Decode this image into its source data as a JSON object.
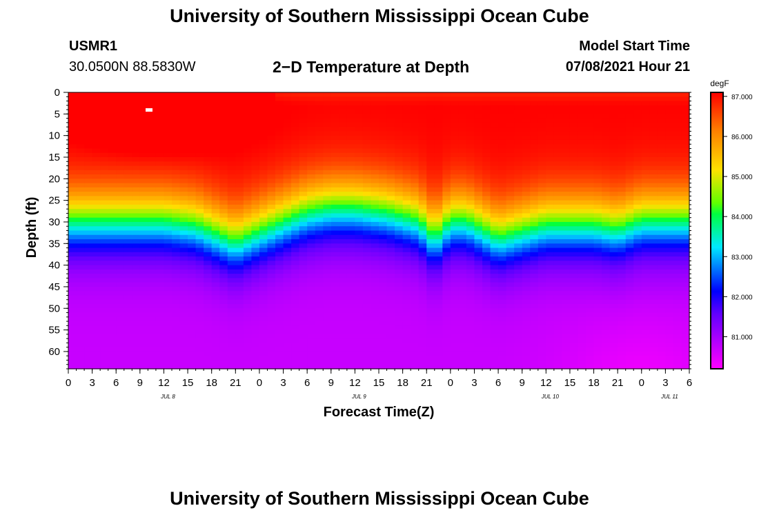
{
  "header": {
    "title": "University of Southern Mississippi Ocean Cube",
    "station_id": "USMR1",
    "coordinates": "30.0500N  88.5830W",
    "plot_title": "2−D Temperature at Depth",
    "model_start_label": "Model Start Time",
    "model_start_value": "07/08/2021 Hour 21"
  },
  "footer": {
    "title": "University of Southern Mississippi Ocean Cube"
  },
  "chart_data": {
    "type": "heatmap",
    "title": "2−D Temperature at Depth",
    "xlabel": "Forecast Time(Z)",
    "ylabel": "Depth (ft)",
    "x_ticks": [
      "0",
      "3",
      "6",
      "9",
      "12",
      "15",
      "18",
      "21",
      "0",
      "3",
      "6",
      "9",
      "12",
      "15",
      "18",
      "21",
      "0",
      "3",
      "6",
      "9",
      "12",
      "15",
      "18",
      "21",
      "0",
      "3",
      "6"
    ],
    "y_ticks": [
      "0",
      "5",
      "10",
      "15",
      "20",
      "25",
      "30",
      "35",
      "40",
      "45",
      "50",
      "55",
      "60"
    ],
    "xlim_hours": [
      0,
      78
    ],
    "ylim_ft": [
      0,
      64
    ],
    "date_labels": [
      {
        "label": "JUL 8",
        "hour": 12
      },
      {
        "label": "JUL 9",
        "hour": 36
      },
      {
        "label": "JUL 10",
        "hour": 60
      },
      {
        "label": "JUL 11",
        "hour": 75
      }
    ],
    "colorbar": {
      "unit": "degF",
      "min": 80.2,
      "max": 87.1,
      "ticks": [
        "87.000",
        "86.000",
        "85.000",
        "84.000",
        "83.000",
        "82.000",
        "81.000"
      ]
    },
    "thermocline_ft_by_hour": [
      [
        0,
        21
      ],
      [
        6,
        21
      ],
      [
        12,
        21
      ],
      [
        16,
        22
      ],
      [
        21,
        26
      ],
      [
        26,
        22
      ],
      [
        30,
        19
      ],
      [
        33,
        18
      ],
      [
        36,
        18
      ],
      [
        40,
        19
      ],
      [
        44,
        21
      ],
      [
        46,
        25
      ],
      [
        47,
        23
      ],
      [
        48,
        21
      ],
      [
        50,
        21
      ],
      [
        52,
        23
      ],
      [
        54,
        25
      ],
      [
        56,
        24
      ],
      [
        60,
        22
      ],
      [
        66,
        22
      ],
      [
        69,
        23
      ],
      [
        72,
        21
      ],
      [
        78,
        21
      ]
    ],
    "max_temp_degF": 87.0,
    "min_temp_degF": 80.3
  }
}
